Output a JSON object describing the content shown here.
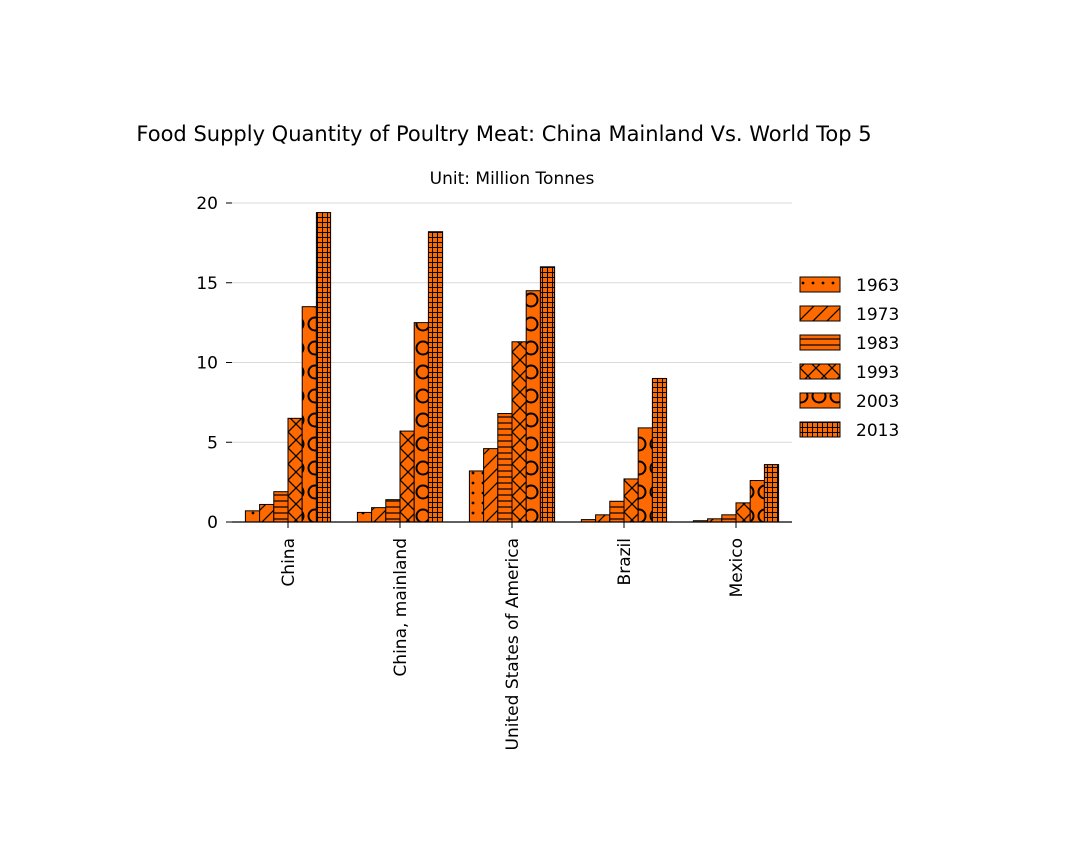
{
  "chart_data": {
    "type": "bar",
    "title": "Food Supply Quantity of Poultry Meat: China Mainland Vs. World Top 5",
    "subtitle": "Unit: Million Tonnes",
    "xlabel": "",
    "ylabel": "",
    "ylim": [
      0,
      20
    ],
    "yticks": [
      0,
      5,
      10,
      15,
      20
    ],
    "grid": true,
    "legend_position": "right",
    "bar_color": "#ff6a00",
    "edge_color": "#000000",
    "categories": [
      "China",
      "China, mainland",
      "United States of America",
      "Brazil",
      "Mexico"
    ],
    "series": [
      {
        "name": "1963",
        "pattern": "dots",
        "values": [
          0.7,
          0.6,
          3.2,
          0.15,
          0.08
        ]
      },
      {
        "name": "1973",
        "pattern": "diagonal",
        "values": [
          1.1,
          0.9,
          4.6,
          0.45,
          0.2
        ]
      },
      {
        "name": "1983",
        "pattern": "horizontal",
        "values": [
          1.9,
          1.4,
          6.8,
          1.3,
          0.45
        ]
      },
      {
        "name": "1993",
        "pattern": "cross",
        "values": [
          6.5,
          5.7,
          11.3,
          2.7,
          1.2
        ]
      },
      {
        "name": "2003",
        "pattern": "circles",
        "values": [
          13.5,
          12.5,
          14.5,
          5.9,
          2.6
        ]
      },
      {
        "name": "2013",
        "pattern": "grid",
        "values": [
          19.4,
          18.2,
          16.0,
          9.0,
          3.6
        ]
      }
    ]
  }
}
